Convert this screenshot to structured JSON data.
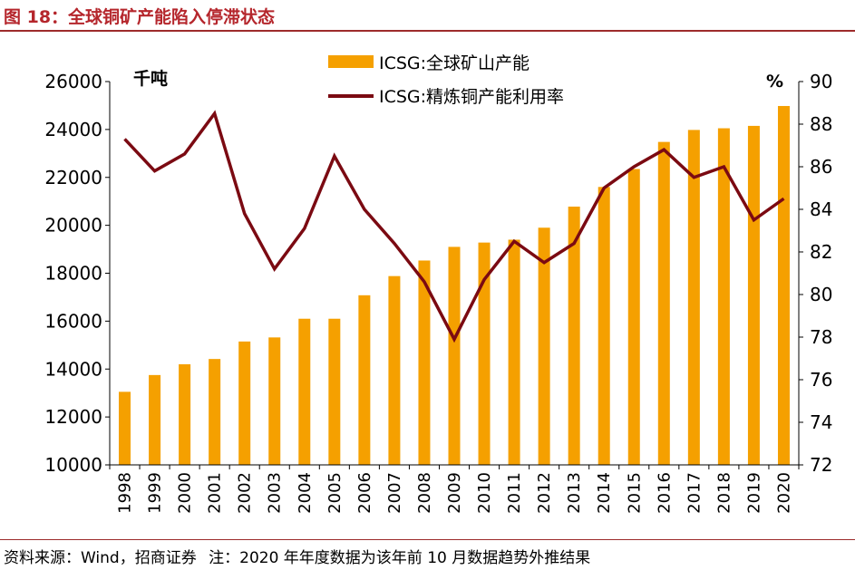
{
  "figure": {
    "title": "图 18：全球铜矿产能陷入停滞状态"
  },
  "footer": {
    "source": "资料来源：Wind，招商证券",
    "note": "注：2020 年年度数据为该年前 10 月数据趋势外推结果"
  },
  "colors": {
    "bar": "#F5A000",
    "line": "#7B0A12",
    "title": "#B5262C",
    "rule": "#9D2B2B"
  },
  "chart_data": {
    "type": "bar+line",
    "categories": [
      "1998",
      "1999",
      "2000",
      "2001",
      "2002",
      "2003",
      "2004",
      "2005",
      "2006",
      "2007",
      "2008",
      "2009",
      "2010",
      "2011",
      "2012",
      "2013",
      "2014",
      "2015",
      "2016",
      "2017",
      "2018",
      "2019",
      "2020"
    ],
    "series": [
      {
        "name": "ICSG:全球矿山产能",
        "type": "bar",
        "axis": "left",
        "values": [
          13050,
          13750,
          14200,
          14420,
          15150,
          15320,
          16100,
          16100,
          17080,
          17880,
          18530,
          19100,
          19280,
          19400,
          19900,
          20780,
          21600,
          22350,
          23480,
          23980,
          24050,
          24150,
          24980
        ]
      },
      {
        "name": "ICSG:精炼铜产能利用率",
        "type": "line",
        "axis": "right",
        "values": [
          87.3,
          85.8,
          86.6,
          88.5,
          83.8,
          81.2,
          83.1,
          86.5,
          84.0,
          82.4,
          80.6,
          77.9,
          80.7,
          82.5,
          81.5,
          82.4,
          85.0,
          86.0,
          86.8,
          85.5,
          86.0,
          83.5,
          84.5
        ]
      }
    ],
    "y_left": {
      "label": "千吨",
      "min": 10000,
      "max": 26000,
      "ticks": [
        10000,
        12000,
        14000,
        16000,
        18000,
        20000,
        22000,
        24000,
        26000
      ]
    },
    "y_right": {
      "label": "%",
      "min": 72,
      "max": 90,
      "ticks": [
        72,
        74,
        76,
        78,
        80,
        82,
        84,
        86,
        88,
        90
      ]
    },
    "legend": {
      "position": "top-center",
      "entries": [
        "ICSG:全球矿山产能",
        "ICSG:精炼铜产能利用率"
      ]
    },
    "grid": false
  }
}
